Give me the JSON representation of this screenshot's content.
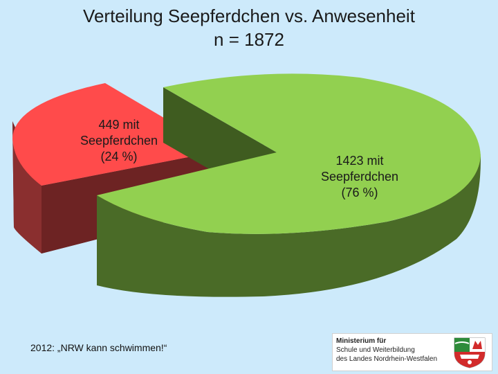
{
  "title": {
    "line1": "Verteilung Seepferdchen vs. Anwesenheit",
    "line2": "n = 1872"
  },
  "chart_data": {
    "type": "pie",
    "title": "Verteilung Seepferdchen vs. Anwesenheit n = 1872",
    "slices": [
      {
        "label": "449 mit Seepferdchen (24 %)",
        "label_lines": [
          "449 mit",
          "Seepferdchen",
          "(24 %)"
        ],
        "value": 449,
        "percent": 24,
        "color": "#ff4b4b",
        "side_color": "#7b2a2a",
        "exploded": true
      },
      {
        "label": "1423 mit Seepferdchen (76 %)",
        "label_lines": [
          "1423 mit",
          "Seepferdchen",
          "(76 %)"
        ],
        "value": 1423,
        "percent": 76,
        "color": "#92d050",
        "side_color": "#4a6b27",
        "exploded": false
      }
    ],
    "style": "3d"
  },
  "footer": {
    "note": "2012: „NRW kann schwimmen!“"
  },
  "logo": {
    "line1": "Ministerium für",
    "line2": "Schule und Weiterbildung",
    "line3": "des Landes Nordrhein-Westfalen",
    "crest": "nrw-coat-of-arms"
  }
}
